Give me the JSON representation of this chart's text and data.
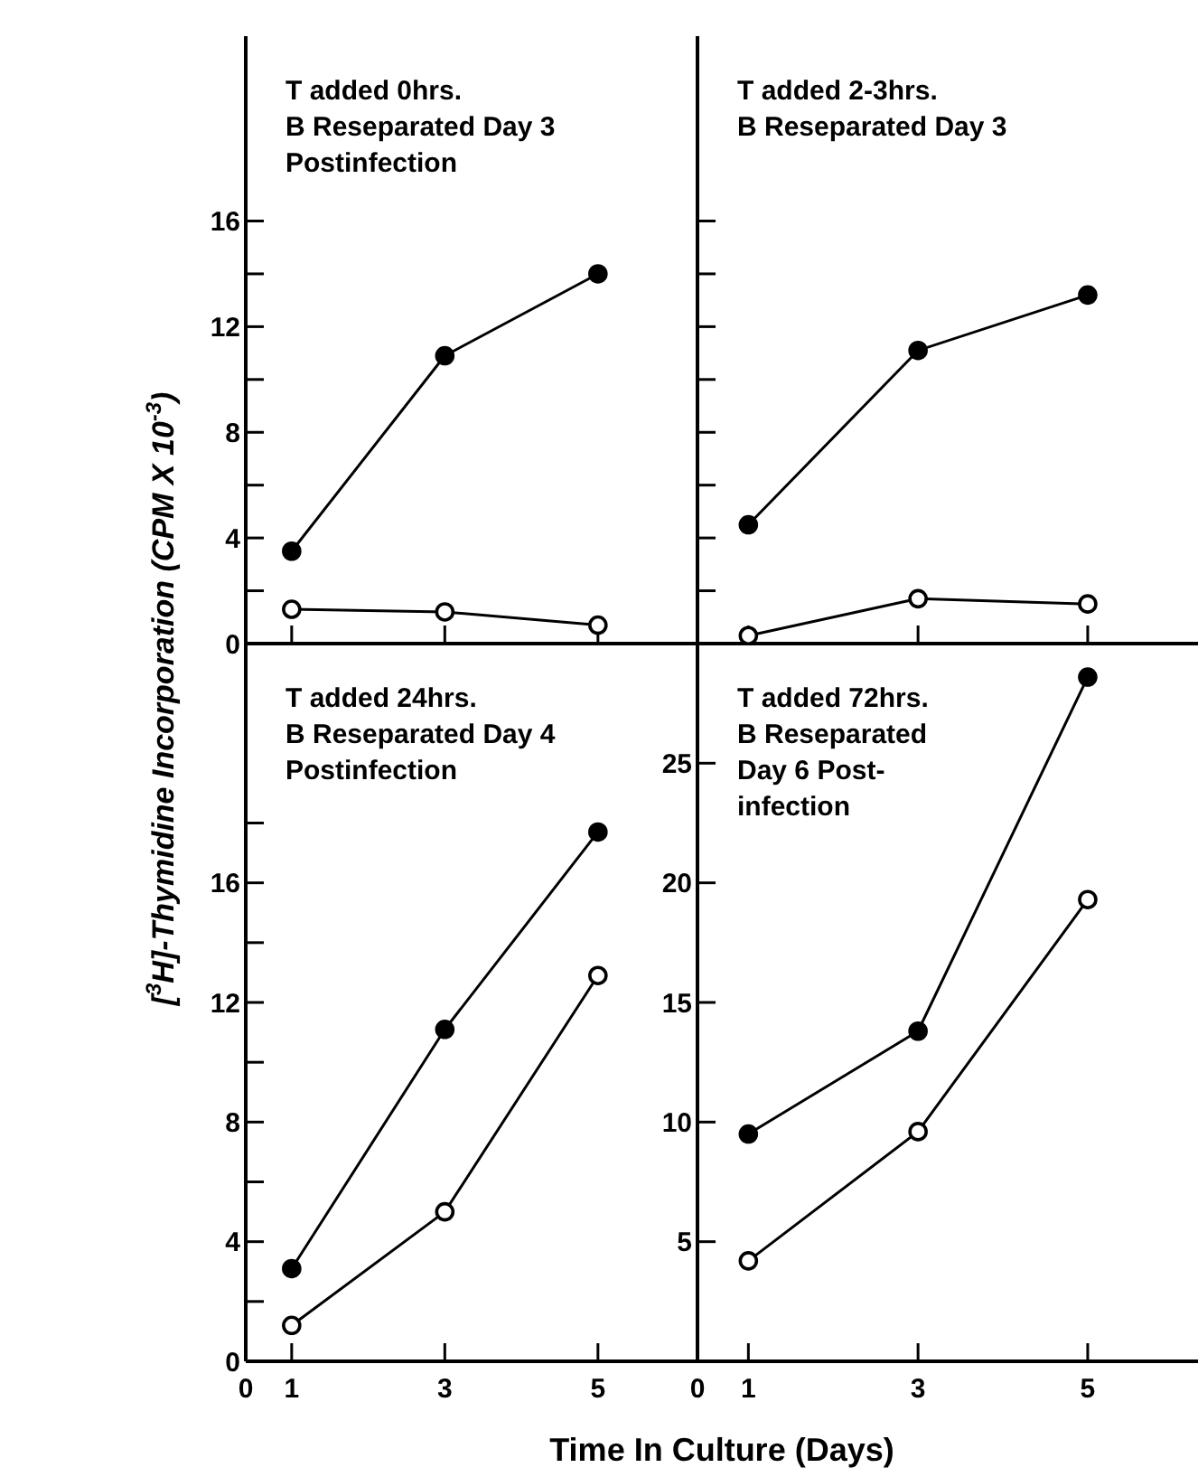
{
  "chart_data": [
    {
      "type": "line",
      "xlim": [
        0.4,
        6.3
      ],
      "ylim": [
        0,
        23
      ],
      "xticks": [
        {
          "value": 1,
          "label": null
        },
        {
          "value": 3,
          "label": null
        },
        {
          "value": 5,
          "label": null
        }
      ],
      "yticks": [
        0,
        {
          "value": 2,
          "label": null
        },
        4,
        {
          "value": 6,
          "label": null
        },
        8,
        {
          "value": 10,
          "label": null
        },
        12,
        {
          "value": 14,
          "label": null
        },
        16
      ],
      "tick_labels": "y",
      "marker": "circle",
      "ylabel": "[$^{3}$H]-Thymidine Incorporation (CPM X 10$^{-3}$)",
      "annotations": [
        "T added 0hrs.",
        "B Reseparated Day 3",
        "Postinfection"
      ],
      "x": [
        1,
        3,
        5
      ],
      "series": [
        {
          "color": "#000000",
          "values": [
            3.5,
            10.9,
            14.0
          ]
        },
        {
          "color": "#000000",
          "values": [
            1.3,
            1.2,
            0.7
          ]
        }
      ]
    },
    {
      "type": "line",
      "xlim": [
        0.4,
        6.3
      ],
      "ylim": [
        0,
        23
      ],
      "xticks": [
        {
          "value": 1,
          "label": null
        },
        {
          "value": 3,
          "label": null
        },
        {
          "value": 5,
          "label": null
        }
      ],
      "yticks": [
        {
          "value": 2,
          "label": null
        },
        {
          "value": 4,
          "label": null
        },
        {
          "value": 6,
          "label": null
        },
        {
          "value": 8,
          "label": null
        },
        {
          "value": 10,
          "label": null
        },
        {
          "value": 12,
          "label": null
        },
        {
          "value": 14,
          "label": null
        },
        {
          "value": 16,
          "label": null
        }
      ],
      "tick_labels": false,
      "marker": "circle",
      "annotations": [
        "T added 2-3hrs.",
        "B Reseparated Day 3"
      ],
      "x": [
        1,
        3,
        5
      ],
      "series": [
        {
          "color": "#000000",
          "values": [
            4.5,
            11.1,
            13.2
          ]
        },
        {
          "color": "#000000",
          "values": [
            0.3,
            1.7,
            1.5
          ]
        }
      ]
    },
    {
      "type": "line",
      "xlim": [
        0.4,
        6.3
      ],
      "ylim": [
        0,
        24
      ],
      "xticks": [
        {
          "value": 0.4,
          "label": "0"
        },
        1,
        3,
        5
      ],
      "yticks": [
        0,
        {
          "value": 2,
          "label": null
        },
        4,
        {
          "value": 6,
          "label": null
        },
        8,
        {
          "value": 10,
          "label": null
        },
        12,
        {
          "value": 14,
          "label": null
        },
        16,
        {
          "value": 18,
          "label": null
        }
      ],
      "marker": "circle",
      "xlabel": "Time In Culture (Days)",
      "annotations": [
        "T added 24hrs.",
        "B Reseparated Day 4",
        "Postinfection"
      ],
      "x": [
        1,
        3,
        5
      ],
      "series": [
        {
          "color": "#000000",
          "values": [
            3.1,
            11.1,
            17.7
          ]
        },
        {
          "color": "#000000",
          "values": [
            1.2,
            5.0,
            12.9
          ]
        }
      ]
    },
    {
      "type": "line",
      "xlim": [
        0.4,
        6.3
      ],
      "ylim": [
        0,
        30
      ],
      "xticks": [
        {
          "value": 0.4,
          "label": "0"
        },
        1,
        3,
        5
      ],
      "yticks": [
        5,
        10,
        15,
        20,
        25
      ],
      "marker": "circle",
      "annotations": [
        "T added 72hrs.",
        "B Reseparated",
        "Day 6 Post-",
        "infection"
      ],
      "x": [
        1,
        3,
        5
      ],
      "series": [
        {
          "color": "#000000",
          "values": [
            9.5,
            13.8,
            28.6
          ]
        },
        {
          "color": "#000000",
          "values": [
            4.2,
            9.6,
            19.3
          ]
        }
      ]
    }
  ]
}
